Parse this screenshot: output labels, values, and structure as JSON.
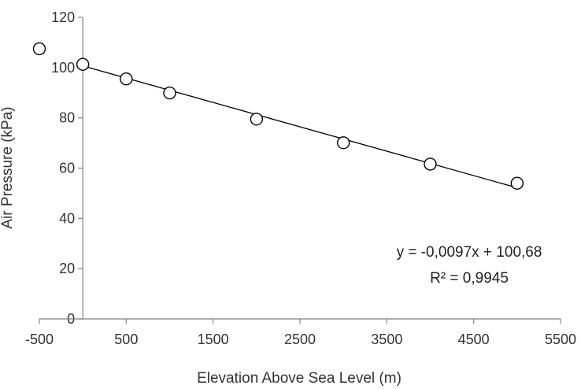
{
  "chart_data": {
    "type": "scatter",
    "title": "",
    "xlabel": "Elevation Above Sea Level (m)",
    "ylabel": "Air Pressure (kPa)",
    "xlim": [
      -500,
      5500
    ],
    "ylim": [
      0,
      120
    ],
    "x_ticks": [
      -500,
      500,
      1500,
      2500,
      3500,
      4500,
      5500
    ],
    "y_ticks": [
      0,
      20,
      40,
      60,
      80,
      100,
      120
    ],
    "x_tick_labels": [
      "-500",
      "500",
      "1500",
      "2500",
      "3500",
      "4500",
      "5500"
    ],
    "y_tick_labels": [
      "0",
      "20",
      "40",
      "60",
      "80",
      "100",
      "120"
    ],
    "grid": false,
    "legend": "none",
    "marker": "open-circle",
    "series": [
      {
        "points": [
          {
            "x": -500,
            "y": 107.5
          },
          {
            "x": 0,
            "y": 101.3
          },
          {
            "x": 500,
            "y": 95.5
          },
          {
            "x": 1000,
            "y": 89.9
          },
          {
            "x": 2000,
            "y": 79.5
          },
          {
            "x": 3000,
            "y": 70.1
          },
          {
            "x": 4000,
            "y": 61.6
          },
          {
            "x": 5000,
            "y": 54.0
          }
        ]
      }
    ],
    "trendline": {
      "type": "linear",
      "slope": -0.0097,
      "intercept": 100.68,
      "x_range": [
        0,
        5000
      ],
      "equation_label": "y = -0,0097x + 100,68",
      "r2_label": "R² = 0,9945",
      "color": "#000000"
    },
    "colors": {
      "axis": "#808080",
      "marker_stroke": "#000000",
      "marker_fill": "#ffffff"
    }
  }
}
